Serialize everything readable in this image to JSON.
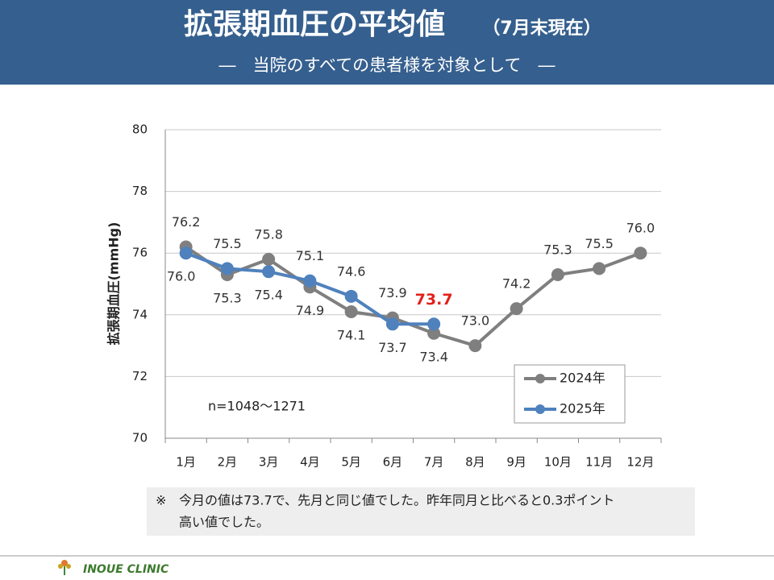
{
  "header": {
    "title": "拡張期血圧の平均値",
    "title_note": "（7月末現在）",
    "subtitle": "―　当院のすべての患者様を対象として　―"
  },
  "chart_data": {
    "type": "line",
    "categories": [
      "1月",
      "2月",
      "3月",
      "4月",
      "5月",
      "6月",
      "7月",
      "8月",
      "9月",
      "10月",
      "11月",
      "12月"
    ],
    "series": [
      {
        "name": "2024年",
        "color": "#7f7f7f",
        "values": [
          76.2,
          75.3,
          75.8,
          74.9,
          74.1,
          73.9,
          73.4,
          73.0,
          74.2,
          75.3,
          75.5,
          76.0
        ],
        "value_labels": [
          "76.2",
          "75.3",
          "75.8",
          "74.9",
          "74.1",
          "73.9",
          "73.4",
          "73.0",
          "74.2",
          "75.3",
          "75.5",
          "76.0"
        ]
      },
      {
        "name": "2025年",
        "color": "#4f81bd",
        "values": [
          76.0,
          75.5,
          75.4,
          75.1,
          74.6,
          73.7,
          73.7,
          null,
          null,
          null,
          null,
          null
        ],
        "value_labels": [
          "76.0",
          "75.5",
          "75.4",
          "75.1",
          "74.6",
          "73.7",
          "73.7",
          null,
          null,
          null,
          null,
          null
        ]
      }
    ],
    "y_label": "拡張期血圧(mmHg)",
    "ylim": [
      70,
      80
    ],
    "yticks": [
      70,
      72,
      74,
      76,
      78,
      80
    ],
    "grid": true,
    "annotation": "n=1048～1271",
    "legend": "lower right"
  },
  "note": {
    "mark": "※",
    "lines": [
      "今月の値は73.7で、先月と同じ値でした。昨年同月と比べると0.3ポイント",
      "高い値でした。"
    ]
  },
  "footer": {
    "clinic": "INOUE CLINIC"
  }
}
